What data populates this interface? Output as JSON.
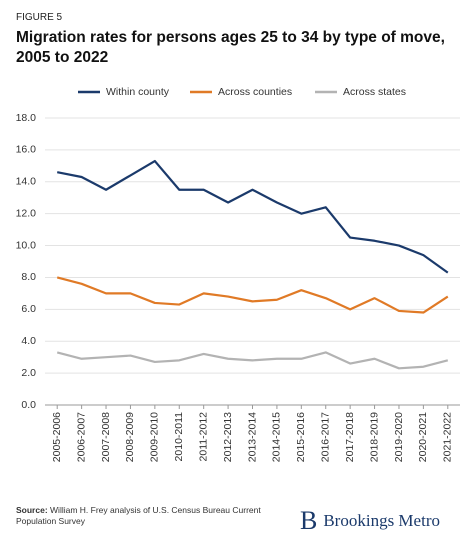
{
  "figure_label": "FIGURE 5",
  "chart_data": {
    "type": "line",
    "title": "Migration rates for persons ages 25 to 34 by type of move, 2005 to 2022",
    "categories": [
      "2005-2006",
      "2006-2007",
      "2007-2008",
      "2008-2009",
      "2009-2010",
      "2010-2011",
      "2011-2012",
      "2012-2013",
      "2013-2014",
      "2014-2015",
      "2015-2016",
      "2016-2017",
      "2017-2018",
      "2018-2019",
      "2019-2020",
      "2020-2021",
      "2021-2022"
    ],
    "series": [
      {
        "name": "Within county",
        "color": "#1b3a6b",
        "values": [
          14.6,
          14.3,
          13.5,
          14.4,
          15.3,
          13.5,
          13.5,
          12.7,
          13.5,
          12.7,
          12.0,
          12.4,
          10.5,
          10.3,
          10.0,
          9.4,
          8.3
        ]
      },
      {
        "name": "Across counties",
        "color": "#e07a26",
        "values": [
          8.0,
          7.6,
          7.0,
          7.0,
          6.4,
          6.3,
          7.0,
          6.8,
          6.5,
          6.6,
          7.2,
          6.7,
          6.0,
          6.7,
          5.9,
          5.8,
          6.8
        ]
      },
      {
        "name": "Across states",
        "color": "#b3b3b3",
        "values": [
          3.3,
          2.9,
          3.0,
          3.1,
          2.7,
          2.8,
          3.2,
          2.9,
          2.8,
          2.9,
          2.9,
          3.3,
          2.6,
          2.9,
          2.3,
          2.4,
          2.8
        ]
      }
    ],
    "ylim": [
      0,
      18
    ],
    "yticks": [
      {
        "value": 0,
        "label": "0.0"
      },
      {
        "value": 2,
        "label": "2.0"
      },
      {
        "value": 4,
        "label": "4.0"
      },
      {
        "value": 6,
        "label": "6.0"
      },
      {
        "value": 8,
        "label": "8.0"
      },
      {
        "value": 10,
        "label": "10.0"
      },
      {
        "value": 12,
        "label": "12.0"
      },
      {
        "value": 14,
        "label": "14.0"
      },
      {
        "value": 16,
        "label": "16.0"
      },
      {
        "value": 18,
        "label": "18.0"
      }
    ],
    "grid": true
  },
  "source_label": "Source:",
  "source": "William H. Frey analysis of U.S. Census Bureau Current Population Survey",
  "logo": {
    "mark": "B",
    "text": "Brookings Metro"
  }
}
